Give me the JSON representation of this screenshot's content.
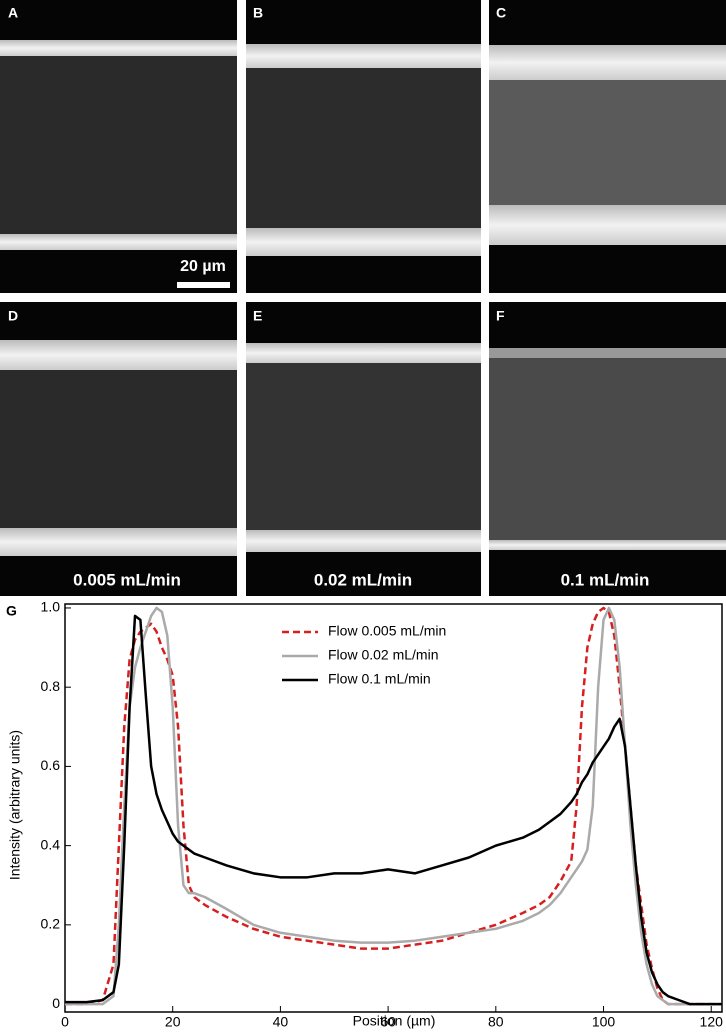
{
  "panels": [
    {
      "label": "A"
    },
    {
      "label": "B"
    },
    {
      "label": "C"
    },
    {
      "label": "D",
      "caption": "0.005 mL/min"
    },
    {
      "label": "E",
      "caption": "0.02 mL/min"
    },
    {
      "label": "F",
      "caption": "0.1 mL/min"
    }
  ],
  "scale_bar": "20 µm",
  "chart_data": {
    "type": "line",
    "panel_label": "G",
    "x_label": "Position (µm)",
    "y_label": "Intensity (arbitrary units)",
    "xlim": [
      0,
      122
    ],
    "ylim": [
      -0.02,
      1.01
    ],
    "xticks": [
      0,
      20,
      40,
      60,
      80,
      100,
      120
    ],
    "yticks": [
      0,
      0.2,
      0.4,
      0.6,
      0.8,
      {
        "value": 1,
        "label": "1.0"
      }
    ],
    "grid": false,
    "legend": "top",
    "x": [
      0,
      4,
      7,
      9,
      10,
      11,
      12,
      13,
      14,
      15,
      16,
      17,
      18,
      19,
      20,
      21,
      22,
      23,
      24,
      26,
      30,
      35,
      40,
      45,
      50,
      55,
      60,
      65,
      70,
      75,
      80,
      85,
      88,
      90,
      92,
      94,
      95,
      96,
      97,
      98,
      99,
      100,
      101,
      102,
      103,
      104,
      105,
      106,
      107,
      108,
      109,
      110,
      111,
      112,
      114,
      116,
      120,
      122
    ],
    "series": [
      {
        "name": "Flow 0.005 mL/min",
        "color": "#d62020",
        "linestyle": "dashed",
        "values": [
          0,
          0,
          0.01,
          0.1,
          0.4,
          0.7,
          0.87,
          0.92,
          0.94,
          0.95,
          0.96,
          0.94,
          0.9,
          0.87,
          0.83,
          0.7,
          0.45,
          0.3,
          0.27,
          0.25,
          0.22,
          0.19,
          0.17,
          0.16,
          0.15,
          0.14,
          0.14,
          0.15,
          0.16,
          0.18,
          0.2,
          0.23,
          0.25,
          0.27,
          0.31,
          0.36,
          0.5,
          0.75,
          0.9,
          0.96,
          0.99,
          1.0,
          0.99,
          0.93,
          0.8,
          0.65,
          0.5,
          0.35,
          0.25,
          0.15,
          0.09,
          0.04,
          0.01,
          0,
          0,
          0,
          0,
          0
        ]
      },
      {
        "name": "Flow 0.02 mL/min",
        "color": "#aaaaaa",
        "linestyle": "solid",
        "values": [
          0,
          0,
          0,
          0.02,
          0.2,
          0.5,
          0.75,
          0.85,
          0.9,
          0.94,
          0.98,
          1.0,
          0.99,
          0.93,
          0.75,
          0.45,
          0.3,
          0.28,
          0.28,
          0.27,
          0.24,
          0.2,
          0.18,
          0.17,
          0.16,
          0.155,
          0.155,
          0.16,
          0.17,
          0.18,
          0.19,
          0.21,
          0.23,
          0.25,
          0.28,
          0.32,
          0.34,
          0.36,
          0.39,
          0.5,
          0.8,
          0.97,
          1.0,
          0.97,
          0.85,
          0.65,
          0.45,
          0.3,
          0.18,
          0.1,
          0.05,
          0.02,
          0.01,
          0,
          0,
          0,
          0,
          0
        ]
      },
      {
        "name": "Flow 0.1 mL/min",
        "color": "#000000",
        "linestyle": "solid",
        "values": [
          0.005,
          0.005,
          0.01,
          0.03,
          0.1,
          0.4,
          0.75,
          0.98,
          0.97,
          0.78,
          0.6,
          0.53,
          0.49,
          0.46,
          0.43,
          0.41,
          0.4,
          0.39,
          0.38,
          0.37,
          0.35,
          0.33,
          0.32,
          0.32,
          0.33,
          0.33,
          0.34,
          0.33,
          0.35,
          0.37,
          0.4,
          0.42,
          0.44,
          0.46,
          0.48,
          0.51,
          0.53,
          0.56,
          0.58,
          0.61,
          0.63,
          0.65,
          0.67,
          0.7,
          0.72,
          0.65,
          0.5,
          0.35,
          0.22,
          0.13,
          0.08,
          0.05,
          0.03,
          0.02,
          0.01,
          0,
          0,
          0
        ]
      }
    ]
  }
}
